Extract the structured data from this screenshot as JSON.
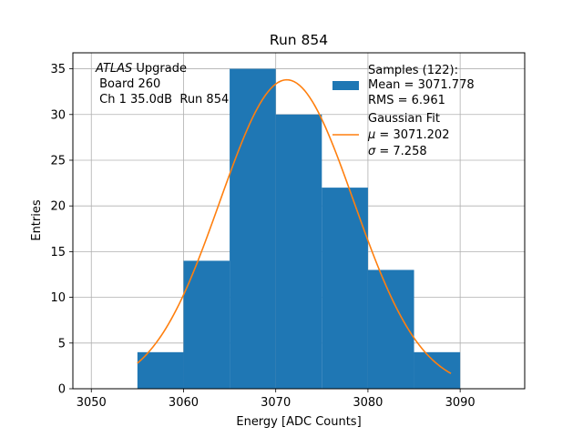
{
  "chart_data": {
    "type": "bar",
    "title": "Run 854",
    "xlabel": "Energy [ADC Counts]",
    "ylabel": "Entries",
    "xlim": [
      3048,
      3097
    ],
    "ylim": [
      0,
      36.75
    ],
    "xticks": [
      3050,
      3060,
      3070,
      3080,
      3090
    ],
    "yticks": [
      0,
      5,
      10,
      15,
      20,
      25,
      30,
      35
    ],
    "grid": true,
    "bar_color": "#1f77b4",
    "fit_color": "#ff7f0e",
    "bins": [
      {
        "x0": 3055,
        "x1": 3060,
        "count": 4
      },
      {
        "x0": 3060,
        "x1": 3065,
        "count": 14
      },
      {
        "x0": 3065,
        "x1": 3070,
        "count": 35
      },
      {
        "x0": 3070,
        "x1": 3075,
        "count": 30
      },
      {
        "x0": 3075,
        "x1": 3080,
        "count": 22
      },
      {
        "x0": 3080,
        "x1": 3085,
        "count": 13
      },
      {
        "x0": 3085,
        "x1": 3090,
        "count": 4
      }
    ],
    "fit": {
      "mu": 3071.202,
      "sigma": 7.258,
      "amplitude": 33.8,
      "x_range": [
        3055,
        3089
      ]
    },
    "annotation": {
      "experiment": "ATLAS",
      "experiment_suffix": " Upgrade",
      "line2": " Board 260",
      "line3": " Ch 1 35.0dB  Run 854"
    },
    "legend": {
      "placement": "top-right",
      "hist_line1": "Samples (122):",
      "hist_line2": "Mean = 3071.778",
      "hist_line3": "RMS = 6.961",
      "fit_line1": "Gaussian Fit",
      "fit_mu_symbol": "μ",
      "fit_mu_value": " = 3071.202",
      "fit_sigma_symbol": "σ",
      "fit_sigma_value": " = 7.258"
    }
  }
}
